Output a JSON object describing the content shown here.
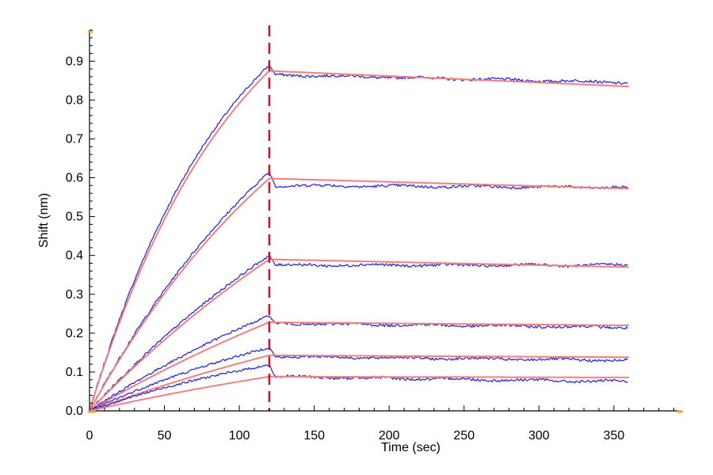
{
  "chart_data": {
    "type": "line",
    "xlabel": "Time (sec)",
    "ylabel": "Shift (nm)",
    "xlim": [
      0,
      395
    ],
    "ylim": [
      0,
      0.98
    ],
    "x_ticks": [
      0,
      50,
      100,
      150,
      200,
      250,
      300,
      350
    ],
    "y_ticks": [
      0.0,
      0.1,
      0.2,
      0.3,
      0.4,
      0.5,
      0.6,
      0.7,
      0.8,
      0.9
    ],
    "y_tick_labels": [
      "0.0",
      "0.1",
      "0.2",
      "0.3",
      "0.4",
      "0.5",
      "0.6",
      "0.7",
      "0.8",
      "0.9"
    ],
    "x_tick_labels": [
      "0",
      "50",
      "100",
      "150",
      "200",
      "250",
      "300",
      "350"
    ],
    "dissociation_start": 120,
    "x_end": 360,
    "colors": {
      "measured": "#2d2dd6",
      "fit": "#f08080",
      "marker_line": "#c8102e",
      "axis": "#000000",
      "corner_mark": "#f5a623"
    },
    "series": [
      {
        "kind": "measured",
        "association": {
          "kobs": 0.0105,
          "plateau": 1.25
        },
        "peak": 0.89,
        "dissoc_start": 0.865,
        "dissoc_end": 0.845
      },
      {
        "kind": "fit",
        "association": {
          "kobs": 0.01,
          "plateau": 1.22
        },
        "peak": 0.875,
        "dissoc_start": 0.875,
        "dissoc_end": 0.835
      },
      {
        "kind": "measured",
        "association": {
          "kobs": 0.006,
          "plateau": 1.19
        },
        "peak": 0.615,
        "dissoc_start": 0.58,
        "dissoc_end": 0.575
      },
      {
        "kind": "fit",
        "association": {
          "kobs": 0.006,
          "plateau": 1.18
        },
        "peak": 0.598,
        "dissoc_start": 0.598,
        "dissoc_end": 0.572
      },
      {
        "kind": "measured",
        "association": {
          "kobs": 0.004,
          "plateau": 1.05
        },
        "peak": 0.4,
        "dissoc_start": 0.375,
        "dissoc_end": 0.375
      },
      {
        "kind": "fit",
        "association": {
          "kobs": 0.0035,
          "plateau": 1.1
        },
        "peak": 0.39,
        "dissoc_start": 0.39,
        "dissoc_end": 0.37
      },
      {
        "kind": "measured",
        "association": {
          "kobs": 0.004,
          "plateau": 0.62
        },
        "peak": 0.245,
        "dissoc_start": 0.225,
        "dissoc_end": 0.215
      },
      {
        "kind": "fit",
        "association": {
          "kobs": 0.003,
          "plateau": 0.74
        },
        "peak": 0.228,
        "dissoc_start": 0.228,
        "dissoc_end": 0.22
      },
      {
        "kind": "measured",
        "association": {
          "kobs": 0.005,
          "plateau": 0.36
        },
        "peak": 0.163,
        "dissoc_start": 0.14,
        "dissoc_end": 0.13
      },
      {
        "kind": "fit",
        "association": {
          "kobs": 0.003,
          "plateau": 0.47
        },
        "peak": 0.143,
        "dissoc_start": 0.143,
        "dissoc_end": 0.138
      },
      {
        "kind": "measured",
        "association": {
          "kobs": 0.006,
          "plateau": 0.23
        },
        "peak": 0.118,
        "dissoc_start": 0.088,
        "dissoc_end": 0.075
      },
      {
        "kind": "fit",
        "association": {
          "kobs": 0.003,
          "plateau": 0.29
        },
        "peak": 0.088,
        "dissoc_start": 0.088,
        "dissoc_end": 0.086
      }
    ]
  }
}
